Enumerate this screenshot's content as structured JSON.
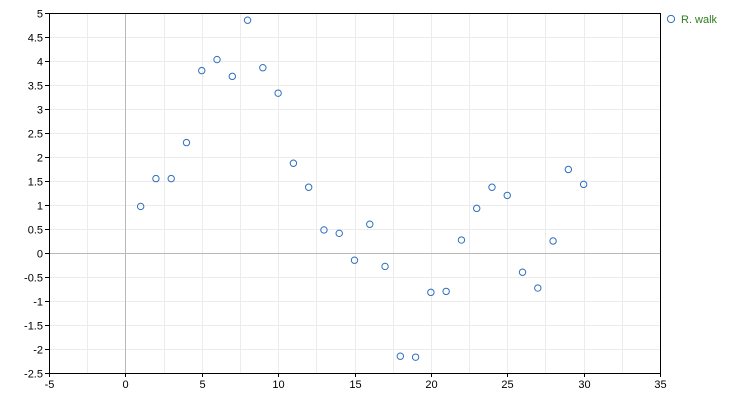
{
  "chart_data": {
    "type": "scatter",
    "title": "",
    "xlabel": "",
    "ylabel": "",
    "xlim": [
      -5,
      35
    ],
    "ylim": [
      -2.5,
      5
    ],
    "x_ticks": [
      -5,
      0,
      5,
      10,
      15,
      20,
      25,
      30,
      35
    ],
    "y_ticks": [
      -2.5,
      -2,
      -1.5,
      -1,
      -0.5,
      0,
      0.5,
      1,
      1.5,
      2,
      2.5,
      3,
      3.5,
      4,
      4.5,
      5
    ],
    "x_tick_labels": [
      "-5",
      "0",
      "5",
      "10",
      "15",
      "20",
      "25",
      "30",
      "35"
    ],
    "y_tick_labels": [
      "-2.5",
      "-2",
      "-1.5",
      "-1",
      "-0.5",
      "0",
      "0.5",
      "1",
      "1.5",
      "2",
      "2.5",
      "3",
      "3.5",
      "4",
      "4.5",
      "5"
    ],
    "grid": true,
    "legend_position": "top-right, outside plot",
    "series": [
      {
        "name": "R. walk",
        "color": "#2f6fbf",
        "marker": "open-circle",
        "x": [
          1,
          2,
          3,
          4,
          5,
          6,
          7,
          8,
          9,
          10,
          11,
          12,
          13,
          14,
          15,
          16,
          17,
          18,
          19,
          20,
          21,
          22,
          23,
          24,
          25,
          26,
          27,
          28,
          29,
          30
        ],
        "y": [
          0.97,
          1.55,
          1.55,
          2.3,
          3.8,
          4.03,
          3.68,
          4.85,
          3.86,
          3.33,
          1.87,
          1.37,
          0.48,
          0.41,
          -0.15,
          0.6,
          -0.28,
          -2.15,
          -2.17,
          -0.82,
          -0.8,
          0.27,
          0.93,
          1.37,
          1.2,
          -0.4,
          -0.73,
          0.25,
          1.74,
          1.43
        ]
      }
    ]
  },
  "colors": {
    "grid": "#ececec",
    "zero_axis": "#b8b8b8",
    "frame": "#000000",
    "legend_text": "#2e7d1f"
  }
}
